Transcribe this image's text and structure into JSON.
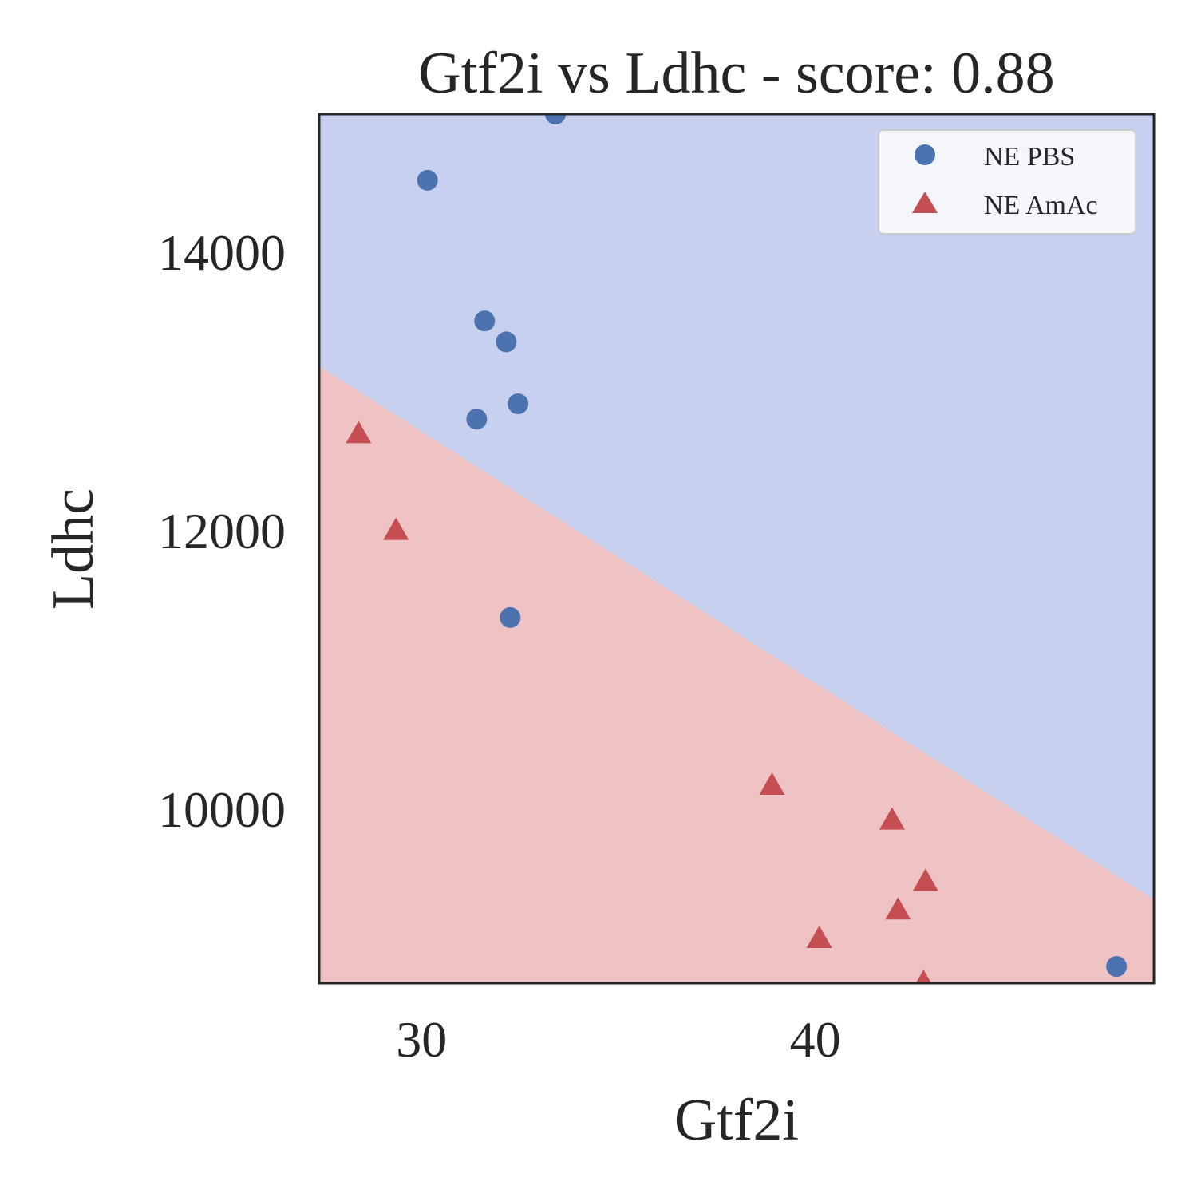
{
  "chart_data": {
    "type": "scatter",
    "title": "Gtf2i vs Ldhc - score: 0.88",
    "xlabel": "Gtf2i",
    "ylabel": "Ldhc",
    "xlim": [
      27.4,
      48.6
    ],
    "ylim": [
      8750,
      14990
    ],
    "xticks": [
      30,
      40
    ],
    "yticks": [
      10000,
      12000,
      14000
    ],
    "grid": false,
    "legend_position": "top-right",
    "decision_boundary": {
      "points": [
        [
          27.4,
          13180
        ],
        [
          48.6,
          9350
        ]
      ],
      "above_class": "NE PBS",
      "below_class": "NE AmAc",
      "above_color": "#c8d0f0",
      "below_color": "#efc3c3"
    },
    "series": [
      {
        "name": "NE PBS",
        "marker": "circle",
        "color": "#4c72b0",
        "points": [
          [
            33.4,
            14990
          ],
          [
            30.15,
            14515
          ],
          [
            31.6,
            13505
          ],
          [
            32.15,
            13355
          ],
          [
            32.45,
            12910
          ],
          [
            31.4,
            12800
          ],
          [
            32.25,
            11375
          ],
          [
            47.65,
            8870
          ]
        ]
      },
      {
        "name": "NE AmAc",
        "marker": "triangle",
        "color": "#c44e52",
        "points": [
          [
            28.4,
            12690
          ],
          [
            29.35,
            11995
          ],
          [
            38.9,
            10165
          ],
          [
            40.1,
            9065
          ],
          [
            41.95,
            9915
          ],
          [
            42.1,
            9270
          ],
          [
            42.8,
            9475
          ],
          [
            42.75,
            8750
          ]
        ]
      }
    ]
  }
}
